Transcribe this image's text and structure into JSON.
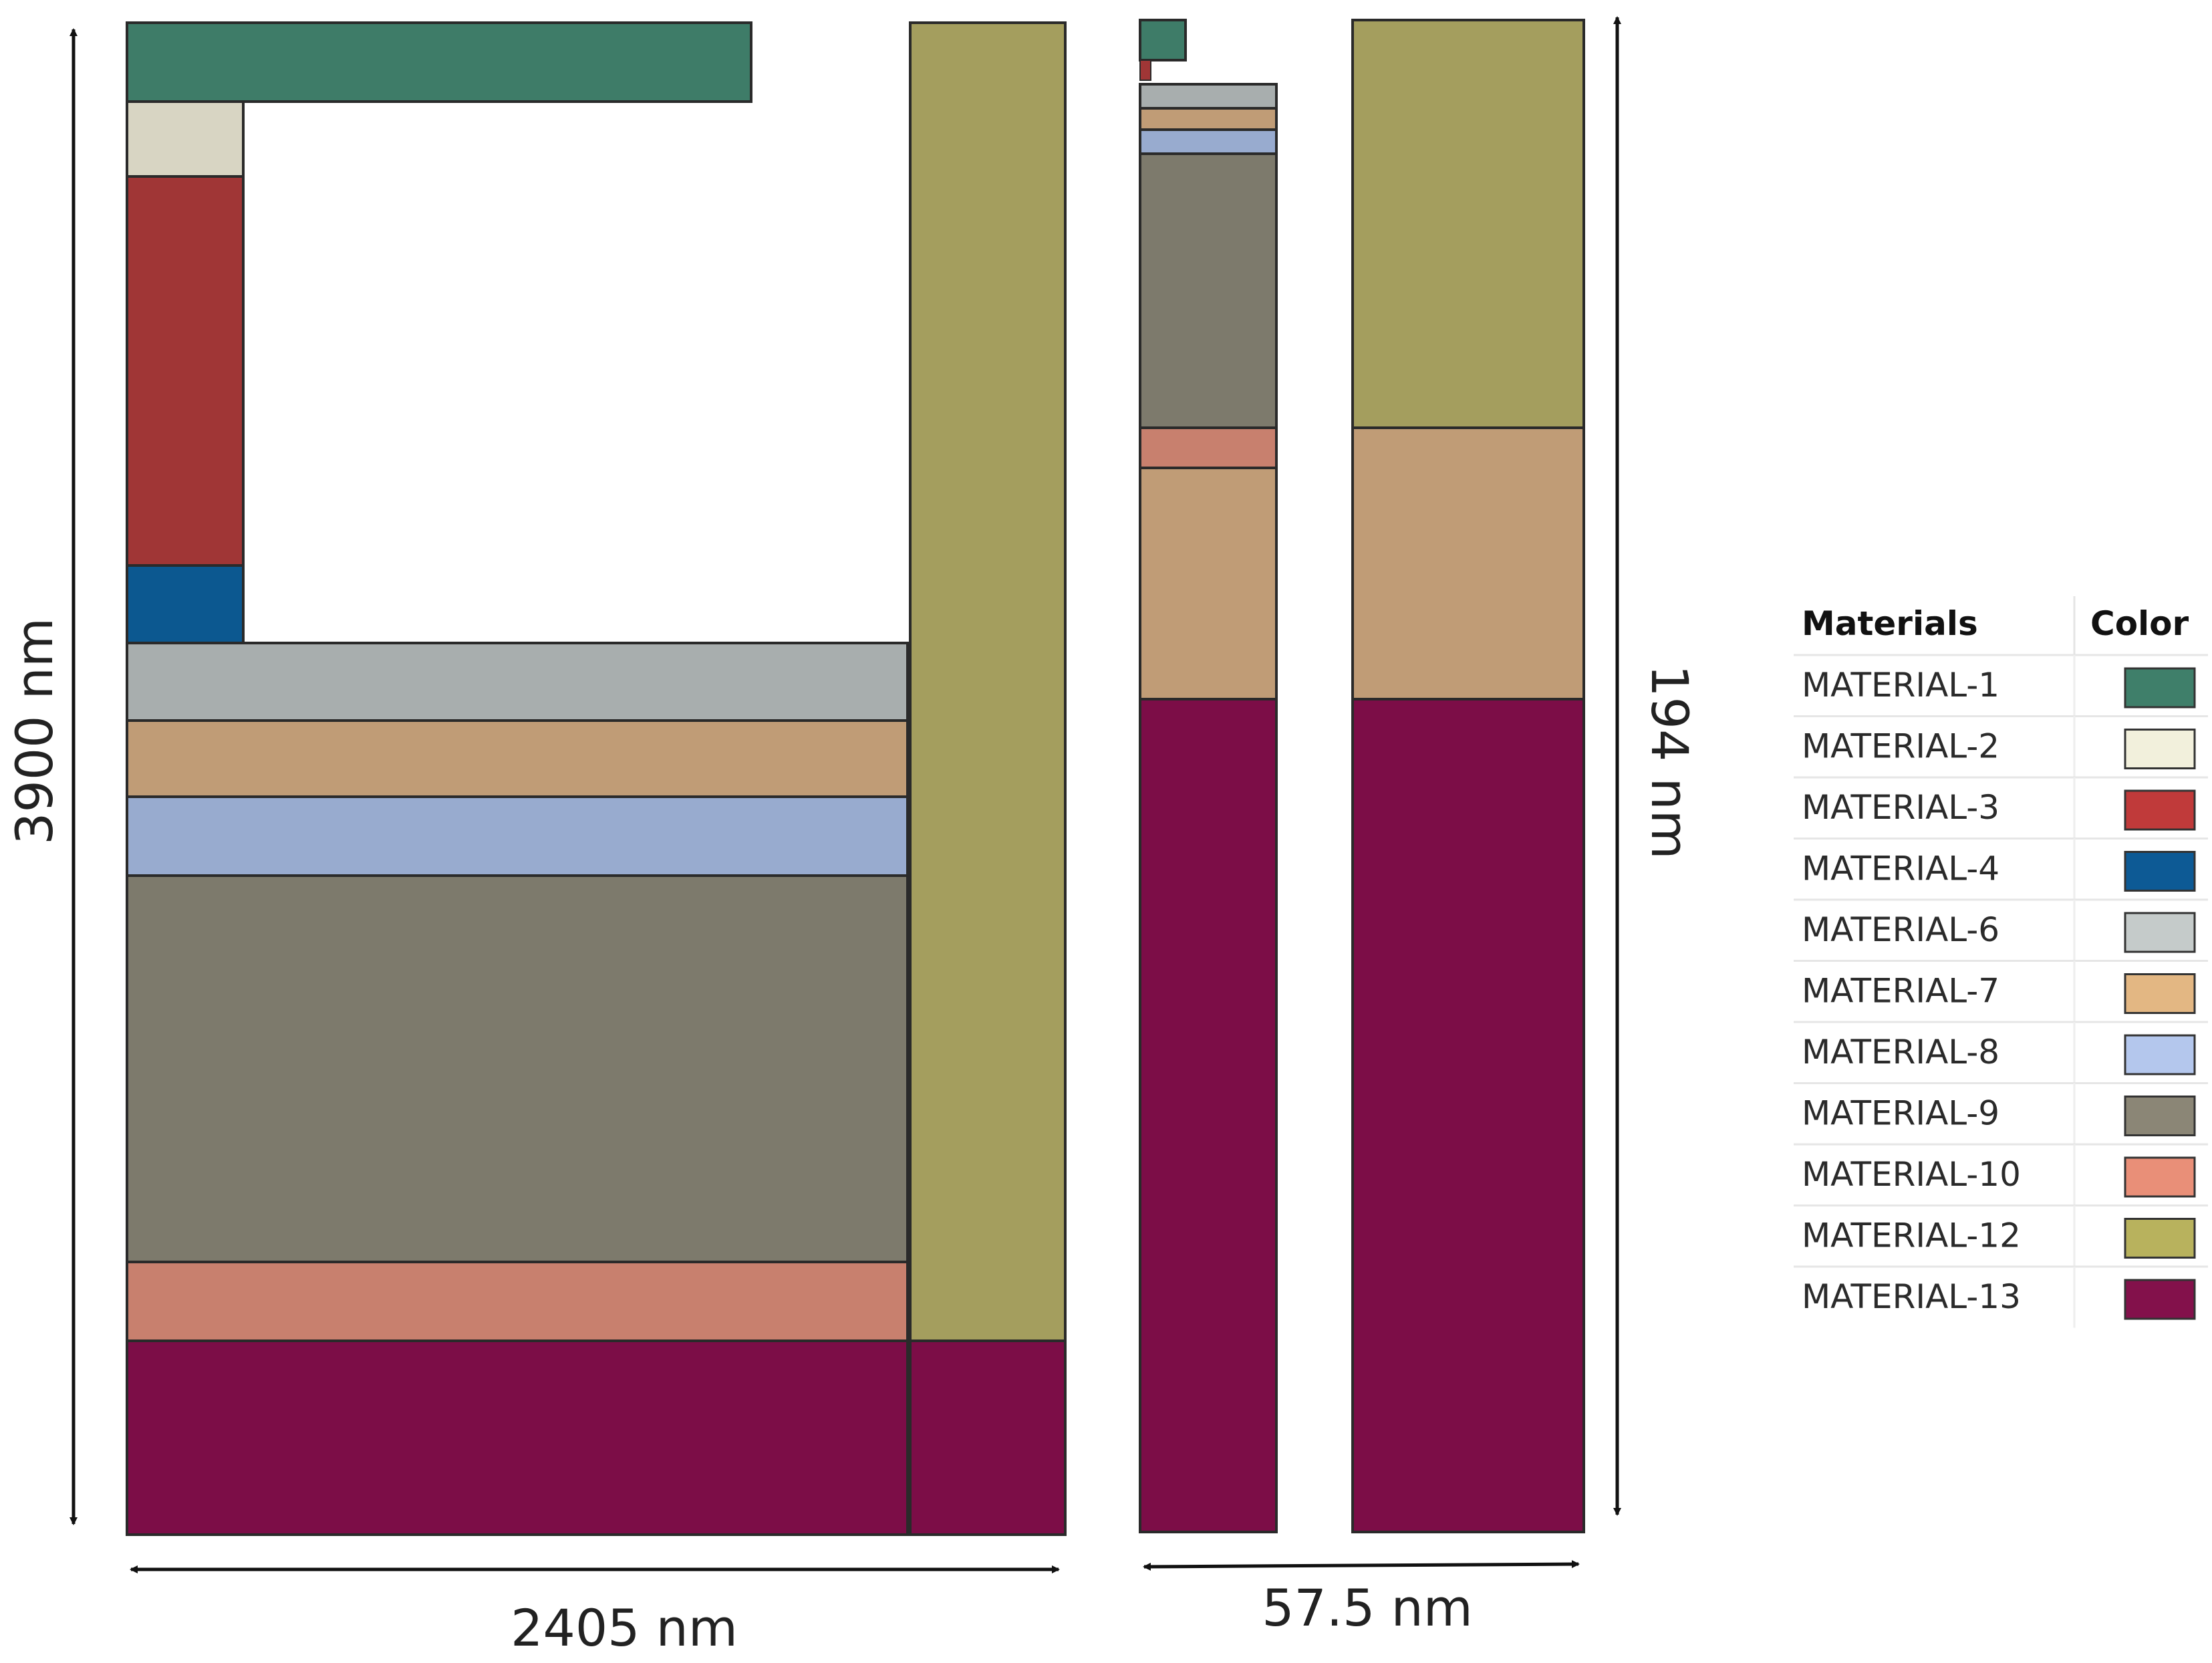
{
  "dimensions": {
    "height_left": "3900 nm",
    "width_left": "2405 nm",
    "height_right": "194 nm",
    "width_right": "57.5 nm"
  },
  "legend": {
    "header_materials": "Materials",
    "header_color": "Color",
    "items": [
      {
        "label": "MATERIAL-1",
        "color": "#3f7f6a"
      },
      {
        "label": "MATERIAL-2",
        "color": "#f2f0dc"
      },
      {
        "label": "MATERIAL-3",
        "color": "#c03a3a"
      },
      {
        "label": "MATERIAL-4",
        "color": "#0d5a95"
      },
      {
        "label": "MATERIAL-6",
        "color": "#c5cbca"
      },
      {
        "label": "MATERIAL-7",
        "color": "#e3b783"
      },
      {
        "label": "MATERIAL-8",
        "color": "#b4c7ed"
      },
      {
        "label": "MATERIAL-9",
        "color": "#8b8676"
      },
      {
        "label": "MATERIAL-10",
        "color": "#e98f78"
      },
      {
        "label": "MATERIAL-12",
        "color": "#b8b25d"
      },
      {
        "label": "MATERIAL-13",
        "color": "#83114b"
      }
    ]
  },
  "fill_colors": {
    "MATERIAL-1": "#3e7c68",
    "MATERIAL-2": "#d8d5c3",
    "MATERIAL-3": "#a03636",
    "MATERIAL-4": "#0c5890",
    "MATERIAL-6": "#a8aeae",
    "MATERIAL-7": "#c09c76",
    "MATERIAL-8": "#98abcf",
    "MATERIAL-9": "#7d7a6c",
    "MATERIAL-10": "#c8806e",
    "MATERIAL-12": "#a49e5e",
    "MATERIAL-13": "#7c0d47"
  }
}
